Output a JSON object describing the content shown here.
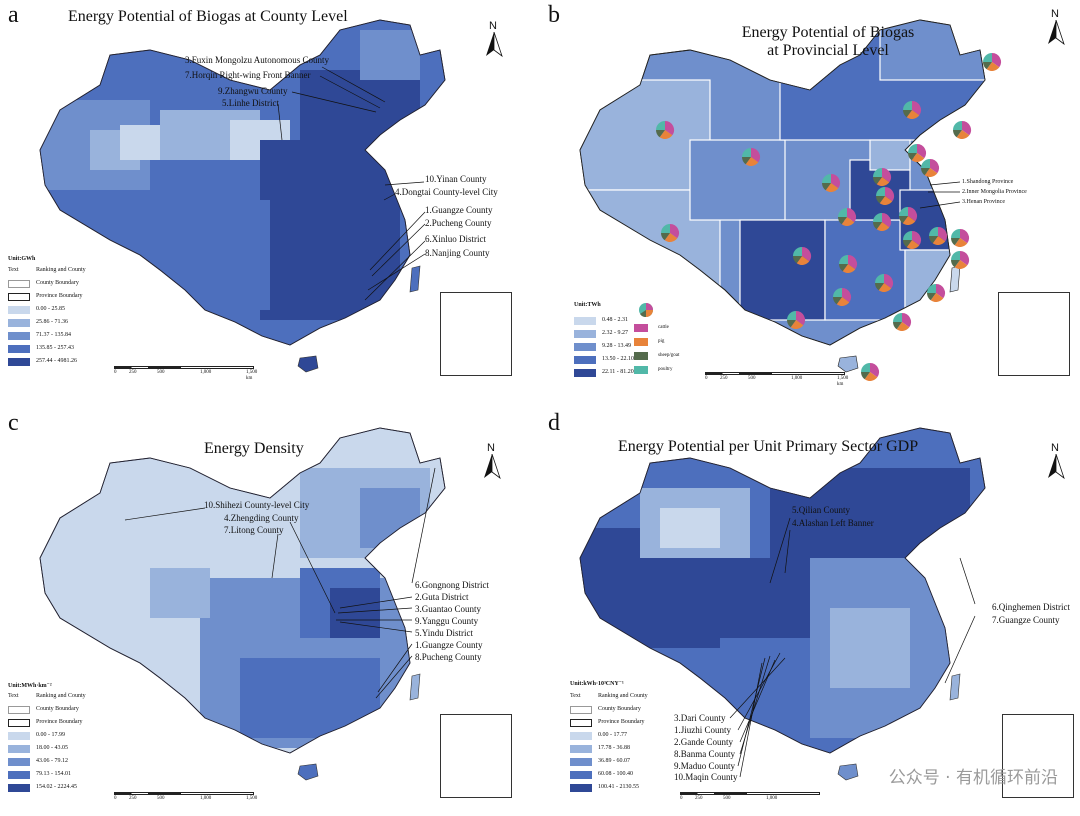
{
  "colors": {
    "c1": "#c9d8ec",
    "c2": "#99b3dc",
    "c3": "#6f8fcc",
    "c4": "#4d6fbd",
    "c5": "#2f4896",
    "cattle": "#c44e9c",
    "pig": "#e8833a",
    "sheep_goat": "#546b4c",
    "poultry": "#51b8a8"
  },
  "panel_a": {
    "label": "a",
    "title": "Energy Potential of Biogas at County Level",
    "unit": "Unit:GWh",
    "annotations": [
      "3.Fuxin Mongolzu Autonomous County",
      "7.Horqin Right-wing Front Banner",
      "9.Zhangwu County",
      "5.Linhe District",
      "10.Yinan County",
      "4.Dongtai County-level City",
      "1.Guangze County",
      "2.Pucheng County",
      "6.Xinluo District",
      "8.Nanjing County"
    ],
    "legend": {
      "text_row": "Ranking and County",
      "text_swatch": "Text",
      "county_boundary": "County Boundary",
      "province_boundary": "Province Boundary",
      "classes": [
        "0.00 - 25.85",
        "25.86 - 71.36",
        "71.37 - 135.84",
        "135.85 - 257.43",
        "257.44 - 4981.26"
      ]
    }
  },
  "panel_b": {
    "label": "b",
    "title_line1": "Energy Potential of Biogas",
    "title_line2": "at Provincial Level",
    "unit": "Unit:TWh",
    "annotations": [
      "1.Shandong Province",
      "2.Inner Mongolia Province",
      "3.Henan Province"
    ],
    "legend": {
      "classes": [
        "0.48 - 2.31",
        "2.32 - 9.27",
        "9.28 - 13.49",
        "13.50 - 22.10",
        "22.11 - 81.20"
      ],
      "pie_items": [
        "cattle",
        "pig",
        "sheep/goat",
        "poultry"
      ]
    },
    "pie_share": {
      "cattle": 0.35,
      "pig": 0.25,
      "sheep_goat": 0.15,
      "poultry": 0.25
    }
  },
  "panel_c": {
    "label": "c",
    "title": "Energy Density",
    "unit": "Unit:MWh·km⁻²",
    "annotations": [
      "10.Shihezi County-level City",
      "4.Zhengding County",
      "7.Litong County",
      "6.Gongnong District",
      "2.Guta District",
      "3.Guantao County",
      "9.Yanggu County",
      "5.Yindu District",
      "1.Guangze County",
      "8.Pucheng County"
    ],
    "legend": {
      "text_row": "Ranking and County",
      "text_swatch": "Text",
      "county_boundary": "County Boundary",
      "province_boundary": "Province Boundary",
      "classes": [
        "0.00 - 17.99",
        "18.00 - 43.05",
        "43.06 - 79.12",
        "79.13 - 154.01",
        "154.02 - 2224.45"
      ]
    }
  },
  "panel_d": {
    "label": "d",
    "title": "Energy Potential per Unit Primary Sector GDP",
    "unit": "Unit:kWh·10³CNY⁻¹",
    "annotations": [
      "5.Qilian County",
      "4.Alashan Left Banner",
      "6.Qinghemen District",
      "7.Guangze County",
      "3.Dari County",
      "1.Jiuzhi County",
      "2.Gande County",
      "8.Banma County",
      "9.Maduo County",
      "10.Maqin County"
    ],
    "legend": {
      "text_row": "Ranking and County",
      "text_swatch": "Text",
      "county_boundary": "County Boundary",
      "province_boundary": "Province Boundary",
      "classes": [
        "0.00 - 17.77",
        "17.78 - 36.88",
        "36.89 - 60.07",
        "60.08 - 100.40",
        "100.41 - 2130.55"
      ]
    }
  },
  "north_label": "N",
  "scale_ticks": [
    "0",
    "250",
    "500",
    "1,000",
    "1,500"
  ],
  "scale_unit": "km",
  "watermark": "公众号 · 有机循环前沿"
}
